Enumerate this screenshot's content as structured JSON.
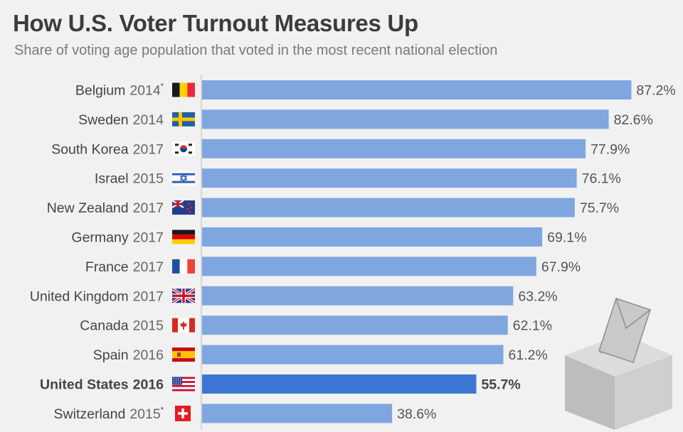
{
  "chart_data": {
    "type": "bar",
    "orientation": "horizontal",
    "title": "How U.S. Voter Turnout Measures Up",
    "subtitle": "Share of voting age population that voted in the most recent national election",
    "xlim": [
      0,
      100
    ],
    "unit": "%",
    "categories": [
      {
        "country": "Belgium",
        "year": "2014",
        "note": "*",
        "flag": "belgium-flag",
        "value": 87.2,
        "label": "87.2%",
        "highlight": false
      },
      {
        "country": "Sweden",
        "year": "2014",
        "note": "",
        "flag": "sweden-flag",
        "value": 82.6,
        "label": "82.6%",
        "highlight": false
      },
      {
        "country": "South Korea",
        "year": "2017",
        "note": "",
        "flag": "south-korea-flag",
        "value": 77.9,
        "label": "77.9%",
        "highlight": false
      },
      {
        "country": "Israel",
        "year": "2015",
        "note": "",
        "flag": "israel-flag",
        "value": 76.1,
        "label": "76.1%",
        "highlight": false
      },
      {
        "country": "New Zealand",
        "year": "2017",
        "note": "",
        "flag": "new-zealand-flag",
        "value": 75.7,
        "label": "75.7%",
        "highlight": false
      },
      {
        "country": "Germany",
        "year": "2017",
        "note": "",
        "flag": "germany-flag",
        "value": 69.1,
        "label": "69.1%",
        "highlight": false
      },
      {
        "country": "France",
        "year": "2017",
        "note": "",
        "flag": "france-flag",
        "value": 67.9,
        "label": "67.9%",
        "highlight": false
      },
      {
        "country": "United Kingdom",
        "year": "2017",
        "note": "",
        "flag": "united-kingdom-flag",
        "value": 63.2,
        "label": "63.2%",
        "highlight": false
      },
      {
        "country": "Canada",
        "year": "2015",
        "note": "",
        "flag": "canada-flag",
        "value": 62.1,
        "label": "62.1%",
        "highlight": false
      },
      {
        "country": "Spain",
        "year": "2016",
        "note": "",
        "flag": "spain-flag",
        "value": 61.2,
        "label": "61.2%",
        "highlight": false
      },
      {
        "country": "United States",
        "year": "2016",
        "note": "",
        "flag": "united-states-flag",
        "value": 55.7,
        "label": "55.7%",
        "highlight": true
      },
      {
        "country": "Switzerland",
        "year": "2015",
        "note": "*",
        "flag": "switzerland-flag",
        "value": 38.6,
        "label": "38.6%",
        "highlight": false
      }
    ],
    "colors": {
      "bar": "#7fa6df",
      "highlight": "#3c78d3",
      "axis": "#bdbdbd",
      "label": "#444444",
      "value": "#555555"
    }
  }
}
